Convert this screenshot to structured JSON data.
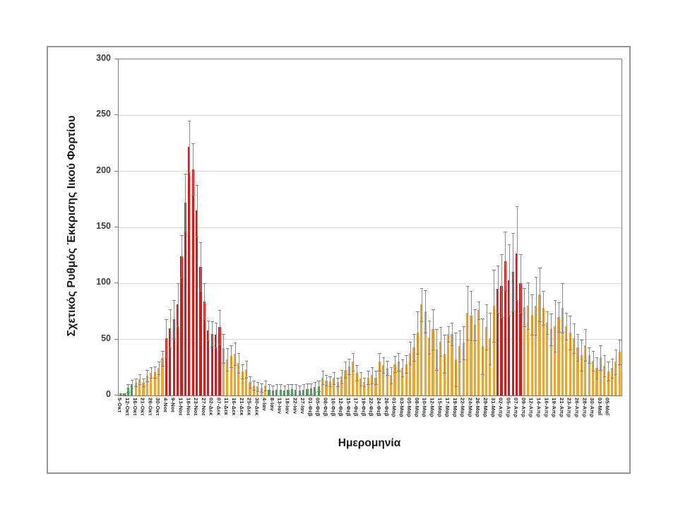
{
  "figure": {
    "background_color": "#ffffff",
    "frame_border_color": "#979797",
    "plot_border_color": "#7a7a7a",
    "gridline_color": "#d9d9d9",
    "error_bar_color": "#8c8c8c"
  },
  "chart_data": {
    "type": "bar",
    "title": "",
    "xlabel": "Ημερομηνία",
    "ylabel": "Σχετικός Ρυθμός Έκκρισης Ιικού Φορτίου",
    "ylim": [
      0,
      300
    ],
    "yticks": [
      0,
      50,
      100,
      150,
      200,
      250,
      300
    ],
    "grid": "horizontal",
    "legend": "none",
    "error_bars": "symmetric, gray whiskers with caps",
    "x_tick_label_interval": 2,
    "x_tick_labels": [
      "5-Οκτ",
      "12-Οκτ",
      "16-Οκτ",
      "21-Οκτ",
      "26-Οκτ",
      "30-Οκτ",
      "4-Νοε",
      "9-Νοε",
      "13-Νοε",
      "18-Νοε",
      "23-Νοε",
      "27-Νοε",
      "02-Δεκ",
      "07-Δεκ",
      "11-Δεκ",
      "16-Δεκ",
      "21-Δεκ",
      "25-Δεκ",
      "30-Δεκ",
      "4-Ιαν",
      "8-Ιαν",
      "13-Ιαν",
      "18-Ιαν",
      "22-Ιαν",
      "27-Ιαν",
      "01-Φεβ",
      "05-Φεβ",
      "08-Φεβ",
      "10-Φεβ",
      "12-Φεβ",
      "15-Φεβ",
      "17-Φεβ",
      "19-Φεβ",
      "22-Φεβ",
      "24-Φεβ",
      "26-Φεβ",
      "01-Μαρ",
      "03-Μαρ",
      "05-Μαρ",
      "08-Μαρ",
      "10-Μαρ",
      "12-Μαρ",
      "15-Μαρ",
      "17-Μαρ",
      "19-Μαρ",
      "22-Μαρ",
      "24-Μαρ",
      "26-Μαρ",
      "29-Μαρ",
      "31-Μαρ",
      "02-Απρ",
      "05-Απρ",
      "07-Απρ",
      "09-Απρ",
      "12-Απρ",
      "14-Απρ",
      "16-Απρ",
      "19-Απρ",
      "21-Απρ",
      "23-Απρ",
      "26-Απρ",
      "28-Απρ",
      "30-Απρ",
      "03-Μαΐ",
      "05-Μαΐ"
    ],
    "palette": {
      "red": "#e01717",
      "orange": "#f3a32a",
      "green": "#41a04b"
    },
    "color_runs": [
      {
        "color": "green",
        "from": 1,
        "to": 4
      },
      {
        "color": "orange",
        "from": 5,
        "to": 12
      },
      {
        "color": "red",
        "from": 13,
        "to": 27
      },
      {
        "color": "orange",
        "from": 28,
        "to": 39
      },
      {
        "color": "green",
        "from": 40,
        "to": 53
      },
      {
        "color": "orange",
        "from": 54,
        "to": 99
      },
      {
        "color": "red",
        "from": 100,
        "to": 106
      },
      {
        "color": "orange",
        "from": 107,
        "to": 132
      }
    ],
    "values": [
      1.2,
      1.2,
      6.7,
      10.3,
      11.5,
      14.5,
      11.5,
      17.8,
      20.3,
      20.8,
      24.5,
      33.3,
      51,
      60,
      68,
      81,
      124,
      172,
      222,
      202,
      165,
      115,
      84,
      58,
      55,
      54,
      61,
      42,
      32,
      35,
      37,
      29,
      21.5,
      23.5,
      12,
      9,
      8,
      7,
      8.8,
      5,
      4.5,
      5,
      5,
      4.5,
      5,
      5.5,
      5,
      4.5,
      5,
      5.5,
      6,
      7.5,
      8.5,
      16,
      13.5,
      12.5,
      15.5,
      12,
      17,
      23,
      26,
      30,
      20,
      15,
      12,
      16,
      18,
      16,
      30,
      27,
      24.5,
      18,
      28,
      30,
      24.5,
      28,
      38,
      43,
      56,
      81,
      75,
      52,
      59,
      41,
      48,
      37,
      55,
      55,
      32,
      44,
      47,
      74,
      71,
      63,
      76,
      44,
      61,
      51,
      80,
      95,
      98,
      120,
      103,
      110,
      127,
      100,
      79,
      80,
      72,
      80,
      90,
      78,
      65,
      59,
      62,
      70,
      78,
      62,
      56,
      51,
      43,
      36,
      45,
      36,
      31,
      24.5,
      34,
      26.5,
      21.5,
      24.5,
      30,
      39
    ],
    "upper_errors": [
      2,
      2,
      10,
      14,
      15,
      19,
      15,
      23,
      25,
      26,
      30,
      40,
      68,
      77,
      85,
      100,
      143,
      198,
      245,
      225,
      188,
      137,
      100,
      67,
      66,
      65,
      76,
      55,
      42,
      45,
      47,
      38,
      28,
      31,
      17,
      13,
      12,
      11,
      13,
      10,
      9,
      10,
      10,
      9,
      10,
      10,
      10,
      9,
      10,
      11,
      11,
      12,
      13,
      22,
      18,
      17,
      21,
      16,
      23,
      30,
      33,
      38,
      27,
      21,
      16,
      22,
      25,
      22,
      38,
      34,
      31,
      25,
      35,
      38,
      32,
      36,
      48,
      55,
      75,
      96,
      94,
      67,
      77,
      59,
      61,
      54,
      62,
      65,
      56,
      58,
      62,
      98,
      93,
      77,
      84,
      69,
      81,
      74,
      112,
      116,
      126,
      146,
      135,
      145,
      169,
      126,
      96,
      101,
      90,
      106,
      114,
      93,
      75,
      73,
      85,
      83,
      100,
      74,
      71,
      64,
      55,
      50,
      59,
      43,
      40,
      34,
      45,
      36,
      30,
      33,
      41,
      50
    ]
  }
}
